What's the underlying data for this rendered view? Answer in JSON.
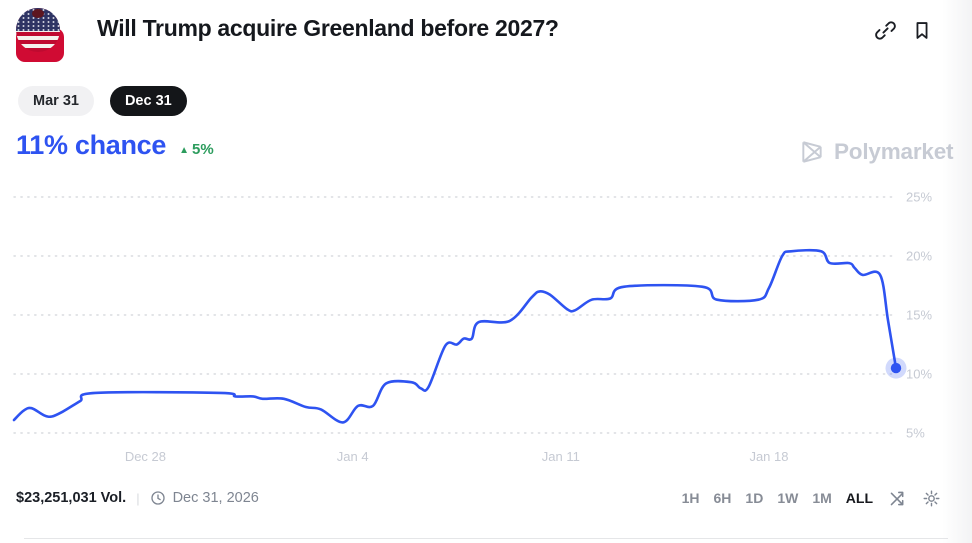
{
  "header": {
    "title": "Will Trump acquire Greenland before 2027?"
  },
  "icons": {
    "header": [
      "link-icon",
      "bookmark-icon"
    ],
    "footer": [
      "clock-icon",
      "shuffle-icon",
      "gear-icon"
    ],
    "avatar": "us-flag-avatar"
  },
  "outcome_tabs": [
    {
      "label": "Mar 31",
      "selected": false
    },
    {
      "label": "Dec 31",
      "selected": true
    }
  ],
  "chance": {
    "value": "11% chance",
    "change": "5%",
    "direction": "up",
    "direction_glyph": "▲",
    "value_color": "#2e53f1",
    "change_color": "#2c9c5d"
  },
  "watermark": {
    "label": "Polymarket"
  },
  "chart_data": {
    "type": "line",
    "title": "",
    "xlabel": "",
    "ylabel": "",
    "ylim": [
      5,
      25
    ],
    "yticks": [
      5,
      10,
      15,
      20,
      25
    ],
    "ytick_suffix": "%",
    "grid": "dotted-horizontal",
    "legend": "none",
    "line_color": "#2e53f1",
    "xticks": [
      {
        "label": "Dec 28",
        "pos_pct": 14.9
      },
      {
        "label": "Jan 4",
        "pos_pct": 38.4
      },
      {
        "label": "Jan 11",
        "pos_pct": 62.0
      },
      {
        "label": "Jan 18",
        "pos_pct": 85.6
      }
    ],
    "series": [
      {
        "name": "Dec 31",
        "color": "#2e53f1",
        "points": [
          [
            0,
            6.1
          ],
          [
            1.1,
            6.9
          ],
          [
            2.0,
            7.1
          ],
          [
            3.4,
            6.5
          ],
          [
            4.3,
            6.4
          ],
          [
            5.5,
            6.8
          ],
          [
            7.5,
            7.7
          ],
          [
            9.2,
            8.4
          ],
          [
            23.4,
            8.4
          ],
          [
            25.1,
            8.1
          ],
          [
            27.1,
            8.1
          ],
          [
            28.2,
            7.9
          ],
          [
            30.6,
            7.9
          ],
          [
            33.1,
            7.2
          ],
          [
            34.8,
            7.0
          ],
          [
            37.3,
            5.9
          ],
          [
            39.0,
            7.3
          ],
          [
            40.7,
            7.3
          ],
          [
            42.2,
            9.2
          ],
          [
            45.1,
            9.3
          ],
          [
            46.1,
            8.8
          ],
          [
            47.0,
            8.9
          ],
          [
            48.9,
            12.4
          ],
          [
            50.2,
            12.5
          ],
          [
            51.0,
            13.0
          ],
          [
            51.9,
            13.0
          ],
          [
            52.7,
            14.4
          ],
          [
            56.2,
            14.5
          ],
          [
            58.7,
            16.5
          ],
          [
            59.6,
            17.0
          ],
          [
            60.8,
            16.7
          ],
          [
            62.7,
            15.5
          ],
          [
            63.6,
            15.4
          ],
          [
            65.5,
            16.3
          ],
          [
            67.6,
            16.4
          ],
          [
            69.2,
            17.4
          ],
          [
            78.0,
            17.4
          ],
          [
            79.7,
            16.3
          ],
          [
            84.4,
            16.3
          ],
          [
            85.6,
            17.3
          ],
          [
            87.1,
            20.0
          ],
          [
            88.1,
            20.4
          ],
          [
            91.5,
            20.4
          ],
          [
            92.5,
            19.4
          ],
          [
            94.7,
            19.4
          ],
          [
            95.3,
            19.0
          ],
          [
            96.2,
            18.4
          ],
          [
            98.2,
            18.4
          ],
          [
            99.1,
            14.5
          ],
          [
            100,
            10.5
          ]
        ]
      }
    ],
    "end_marker": {
      "value": 10.5,
      "color": "#2e53f1"
    }
  },
  "footer": {
    "volume": "$23,251,031 Vol.",
    "separator": "|",
    "end_date": "Dec 31, 2026",
    "timeframes": [
      {
        "label": "1H",
        "active": false
      },
      {
        "label": "6H",
        "active": false
      },
      {
        "label": "1D",
        "active": false
      },
      {
        "label": "1W",
        "active": false
      },
      {
        "label": "1M",
        "active": false
      },
      {
        "label": "ALL",
        "active": true
      }
    ]
  }
}
